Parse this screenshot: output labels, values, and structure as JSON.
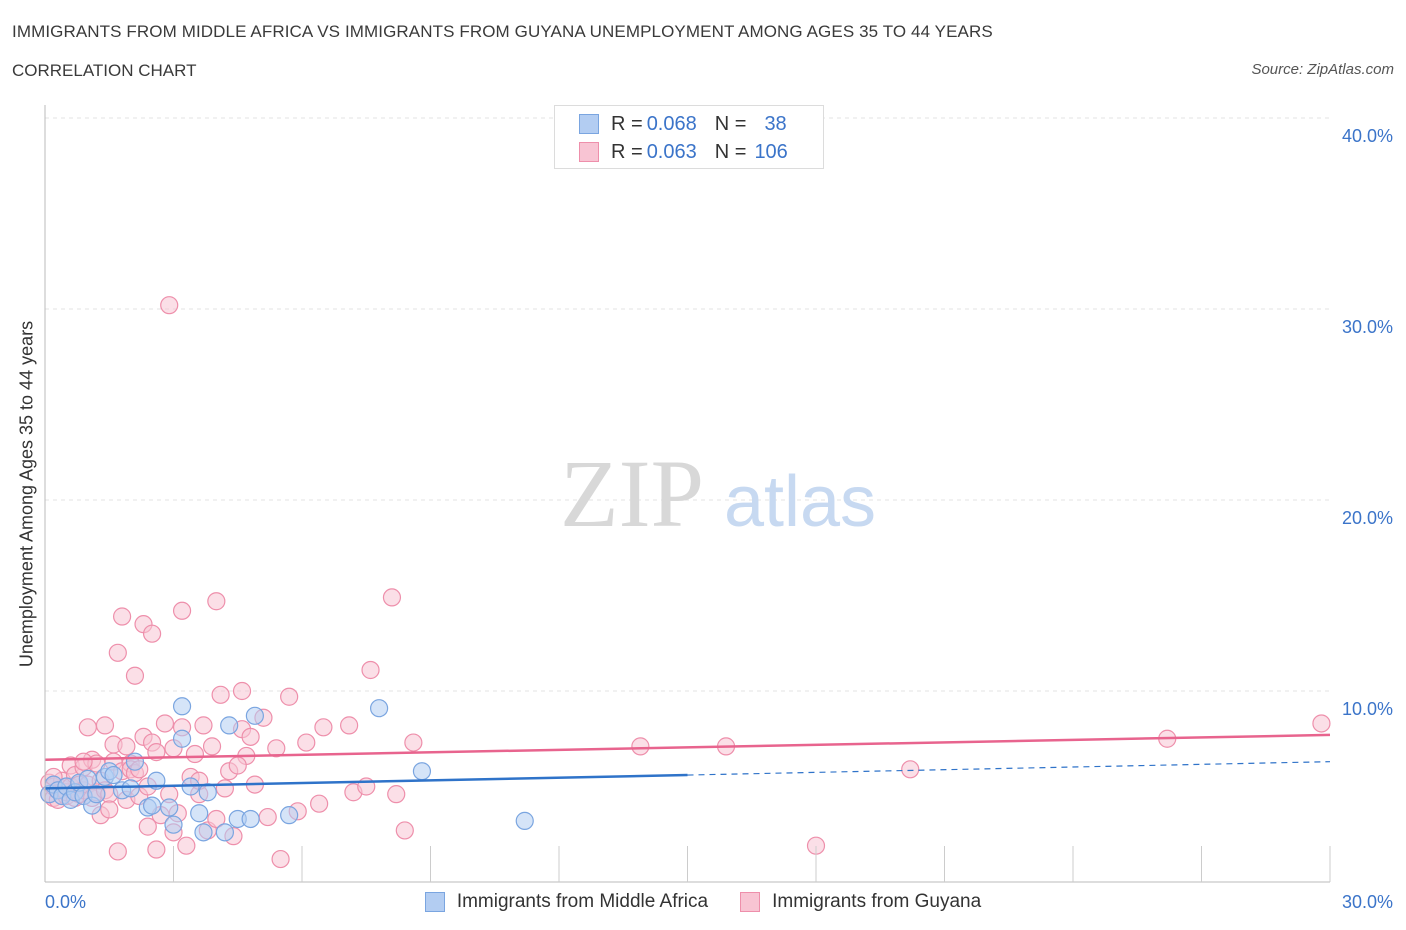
{
  "header": {
    "title": "IMMIGRANTS FROM MIDDLE AFRICA VS IMMIGRANTS FROM GUYANA UNEMPLOYMENT AMONG AGES 35 TO 44 YEARS",
    "subtitle": "CORRELATION CHART",
    "source": "Source: ZipAtlas.com"
  },
  "watermark": {
    "zip": "ZIP",
    "atlas": "atlas"
  },
  "legend": {
    "series1": {
      "r_label": "R =",
      "r_value": "0.068",
      "n_label": "N =",
      "n_value": "38"
    },
    "series2": {
      "r_label": "R =",
      "r_value": "0.063",
      "n_label": "N =",
      "n_value": "106"
    }
  },
  "colors": {
    "blue_fill": "#b3cdf2",
    "blue_stroke": "#7aa5e0",
    "blue_line": "#2f73c9",
    "pink_fill": "#f8c4d3",
    "pink_stroke": "#ee8fab",
    "pink_line": "#e8648e",
    "tick_text": "#3b74c9",
    "grid": "#e3e3e3"
  },
  "chart_data": {
    "type": "scatter",
    "title": "IMMIGRANTS FROM MIDDLE AFRICA VS IMMIGRANTS FROM GUYANA UNEMPLOYMENT AMONG AGES 35 TO 44 YEARS",
    "xlabel": "",
    "ylabel": "Unemployment Among Ages 35 to 44 years",
    "xlim": [
      0,
      30
    ],
    "ylim": [
      0,
      40
    ],
    "x_tick_labels": [
      "0.0%",
      "30.0%"
    ],
    "y_ticks": [
      10,
      20,
      30,
      40
    ],
    "y_tick_labels": [
      "10.0%",
      "20.0%",
      "30.0%",
      "40.0%"
    ],
    "grid": true,
    "series": [
      {
        "name": "Immigrants from Middle Africa",
        "color": "#b3cdf2",
        "r": 0.068,
        "n": 38,
        "trend": {
          "x0": 0,
          "y0": 4.9,
          "x1": 15,
          "y1": 5.6,
          "dashed_to_x": 30,
          "dashed_to_y": 6.3
        },
        "points": [
          [
            0.1,
            4.6
          ],
          [
            0.2,
            5.1
          ],
          [
            0.3,
            4.8
          ],
          [
            0.4,
            4.5
          ],
          [
            0.5,
            5.0
          ],
          [
            0.6,
            4.3
          ],
          [
            0.7,
            4.7
          ],
          [
            0.8,
            5.2
          ],
          [
            0.9,
            4.5
          ],
          [
            1.0,
            5.4
          ],
          [
            1.1,
            4.0
          ],
          [
            1.2,
            4.6
          ],
          [
            1.4,
            5.5
          ],
          [
            1.5,
            5.8
          ],
          [
            1.6,
            5.6
          ],
          [
            1.8,
            4.8
          ],
          [
            2.0,
            4.9
          ],
          [
            2.1,
            6.3
          ],
          [
            2.4,
            3.9
          ],
          [
            2.5,
            4.0
          ],
          [
            2.6,
            5.3
          ],
          [
            2.9,
            3.9
          ],
          [
            3.0,
            3.0
          ],
          [
            3.2,
            7.5
          ],
          [
            3.2,
            9.2
          ],
          [
            3.4,
            5.0
          ],
          [
            3.6,
            3.6
          ],
          [
            3.7,
            2.6
          ],
          [
            3.8,
            4.7
          ],
          [
            4.2,
            2.6
          ],
          [
            4.3,
            8.2
          ],
          [
            4.5,
            3.3
          ],
          [
            4.8,
            3.3
          ],
          [
            4.9,
            8.7
          ],
          [
            5.7,
            3.5
          ],
          [
            7.8,
            9.1
          ],
          [
            8.8,
            5.8
          ],
          [
            11.2,
            3.2
          ]
        ]
      },
      {
        "name": "Immigrants from Guyana",
        "color": "#f8c4d3",
        "r": 0.063,
        "n": 106,
        "trend": {
          "x0": 0,
          "y0": 6.4,
          "x1": 30,
          "y1": 7.7
        },
        "points": [
          [
            0.1,
            4.6
          ],
          [
            0.1,
            5.2
          ],
          [
            0.2,
            4.4
          ],
          [
            0.2,
            5.0
          ],
          [
            0.3,
            4.8
          ],
          [
            0.3,
            4.3
          ],
          [
            0.4,
            4.9
          ],
          [
            0.4,
            5.3
          ],
          [
            0.5,
            4.5
          ],
          [
            0.5,
            4.7
          ],
          [
            0.6,
            5.0
          ],
          [
            0.6,
            6.1
          ],
          [
            0.7,
            4.4
          ],
          [
            0.7,
            5.6
          ],
          [
            0.8,
            4.6
          ],
          [
            0.8,
            5.1
          ],
          [
            0.9,
            4.8
          ],
          [
            0.9,
            6.0
          ],
          [
            1.0,
            8.1
          ],
          [
            1.0,
            5.1
          ],
          [
            1.1,
            4.4
          ],
          [
            1.1,
            6.4
          ],
          [
            1.2,
            6.2
          ],
          [
            1.2,
            4.7
          ],
          [
            1.3,
            3.5
          ],
          [
            1.3,
            5.3
          ],
          [
            1.4,
            8.2
          ],
          [
            1.4,
            4.8
          ],
          [
            1.5,
            4.6
          ],
          [
            1.6,
            7.2
          ],
          [
            1.6,
            6.3
          ],
          [
            1.7,
            1.6
          ],
          [
            1.7,
            12.0
          ],
          [
            1.8,
            13.9
          ],
          [
            1.8,
            5.8
          ],
          [
            1.9,
            4.3
          ],
          [
            1.9,
            7.1
          ],
          [
            2.0,
            6.2
          ],
          [
            2.0,
            5.9
          ],
          [
            2.1,
            5.7
          ],
          [
            2.1,
            10.8
          ],
          [
            2.2,
            4.5
          ],
          [
            2.3,
            13.5
          ],
          [
            2.3,
            7.6
          ],
          [
            2.4,
            2.9
          ],
          [
            2.4,
            5.0
          ],
          [
            2.5,
            13.0
          ],
          [
            2.5,
            7.3
          ],
          [
            2.6,
            6.8
          ],
          [
            2.6,
            1.7
          ],
          [
            2.7,
            3.5
          ],
          [
            2.8,
            8.3
          ],
          [
            2.9,
            30.2
          ],
          [
            2.9,
            4.6
          ],
          [
            3.0,
            2.6
          ],
          [
            3.0,
            7.0
          ],
          [
            3.1,
            3.6
          ],
          [
            3.2,
            14.2
          ],
          [
            3.2,
            8.1
          ],
          [
            3.3,
            1.9
          ],
          [
            3.4,
            5.5
          ],
          [
            3.5,
            6.7
          ],
          [
            3.6,
            4.6
          ],
          [
            3.7,
            8.2
          ],
          [
            3.8,
            2.7
          ],
          [
            3.9,
            7.1
          ],
          [
            4.0,
            14.7
          ],
          [
            4.0,
            3.3
          ],
          [
            4.1,
            9.8
          ],
          [
            4.2,
            4.9
          ],
          [
            4.3,
            5.8
          ],
          [
            4.4,
            2.4
          ],
          [
            4.6,
            10.0
          ],
          [
            4.6,
            8.0
          ],
          [
            4.7,
            6.6
          ],
          [
            4.8,
            7.6
          ],
          [
            4.9,
            5.1
          ],
          [
            5.1,
            8.6
          ],
          [
            5.2,
            3.4
          ],
          [
            5.4,
            7.0
          ],
          [
            5.5,
            1.2
          ],
          [
            5.7,
            9.7
          ],
          [
            5.9,
            3.7
          ],
          [
            6.1,
            7.3
          ],
          [
            6.4,
            4.1
          ],
          [
            6.5,
            8.1
          ],
          [
            7.1,
            8.2
          ],
          [
            7.2,
            4.7
          ],
          [
            7.5,
            5.0
          ],
          [
            7.6,
            11.1
          ],
          [
            8.1,
            14.9
          ],
          [
            8.2,
            4.6
          ],
          [
            8.4,
            2.7
          ],
          [
            8.6,
            7.3
          ],
          [
            13.9,
            7.1
          ],
          [
            15.9,
            7.1
          ],
          [
            18.0,
            1.9
          ],
          [
            20.2,
            5.9
          ],
          [
            26.2,
            7.5
          ],
          [
            29.8,
            8.3
          ],
          [
            0.2,
            5.5
          ],
          [
            0.9,
            6.3
          ],
          [
            1.5,
            3.8
          ],
          [
            2.2,
            5.9
          ],
          [
            3.6,
            5.3
          ],
          [
            4.5,
            6.1
          ]
        ]
      }
    ]
  },
  "bottom_legend": {
    "series1": "Immigrants from Middle Africa",
    "series2": "Immigrants from Guyana"
  }
}
